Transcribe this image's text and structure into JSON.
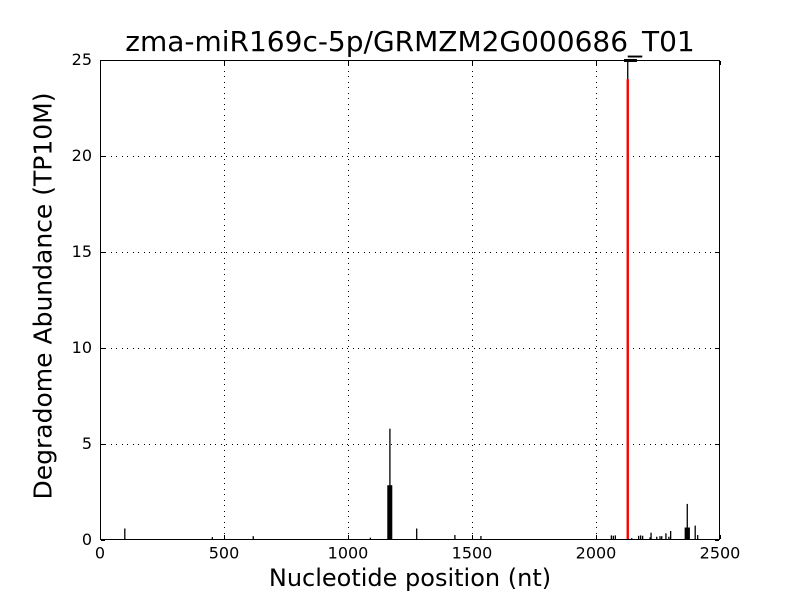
{
  "chart_data": {
    "type": "bar",
    "title": "zma-miR169c-5p/GRMZM2G000686_T01",
    "xlabel": "Nucleotide position (nt)",
    "ylabel": "Degradome Abundance (TP10M)",
    "xlim": [
      0,
      2500
    ],
    "ylim": [
      0,
      25
    ],
    "xticks": [
      0,
      500,
      1000,
      1500,
      2000,
      2500
    ],
    "yticks": [
      0,
      5,
      10,
      15,
      20,
      25
    ],
    "grid": {
      "style": "dotted",
      "color": "#000000"
    },
    "series": [
      {
        "name": "degradome-abundance-spikes",
        "color": "#000000",
        "points": [
          [
            100,
            0.6
          ],
          [
            453,
            0.15
          ],
          [
            618,
            0.2
          ],
          [
            1090,
            0.12
          ],
          [
            1161,
            2.85
          ],
          [
            1165,
            2.85
          ],
          [
            1169,
            5.8
          ],
          [
            1173,
            2.85
          ],
          [
            1176,
            2.85
          ],
          [
            1277,
            0.6
          ],
          [
            1431,
            0.26
          ],
          [
            1536,
            0.21
          ],
          [
            2062,
            0.24
          ],
          [
            2070,
            0.22
          ],
          [
            2078,
            0.24
          ],
          [
            2128,
            25.0
          ],
          [
            2144,
            0.1
          ],
          [
            2172,
            0.22
          ],
          [
            2180,
            0.24
          ],
          [
            2188,
            0.22
          ],
          [
            2218,
            0.14
          ],
          [
            2222,
            0.38
          ],
          [
            2245,
            0.17
          ],
          [
            2258,
            0.2
          ],
          [
            2265,
            0.2
          ],
          [
            2282,
            0.35
          ],
          [
            2294,
            0.17
          ],
          [
            2301,
            0.47
          ],
          [
            2360,
            0.65
          ],
          [
            2364,
            0.65
          ],
          [
            2368,
            1.88
          ],
          [
            2372,
            0.65
          ],
          [
            2376,
            0.65
          ],
          [
            2400,
            0.75
          ],
          [
            2410,
            0.26
          ]
        ]
      }
    ],
    "target_site_marker": {
      "position": 2128,
      "peak_value": 25.0,
      "red_line_top": 24.0,
      "line_color": "#ff0000",
      "top_cap": {
        "from": 2113,
        "to": 2165,
        "at_value": 25,
        "color": "#000000"
      }
    }
  }
}
